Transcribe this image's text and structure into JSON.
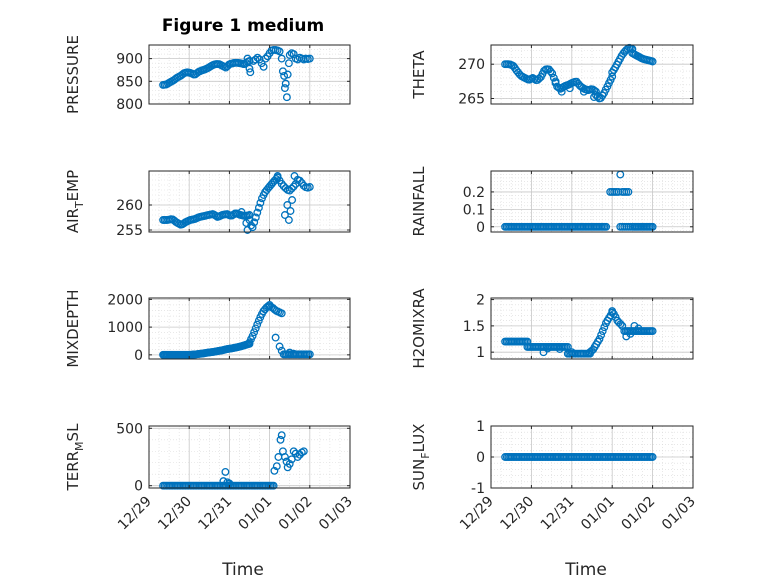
{
  "figure_title": "Figure 1 medium",
  "x_label": "Time",
  "x_tick_labels": [
    "12/29",
    "12/30",
    "12/31",
    "01/01",
    "01/02",
    "01/03"
  ],
  "marker_color": "#0072BD",
  "chart_data": [
    {
      "type": "scatter",
      "ylabel": "PRESSURE",
      "title": "Figure 1 medium",
      "xlim": [
        0,
        5
      ],
      "ylim": [
        800,
        930
      ],
      "yticks": [
        800,
        850,
        900
      ],
      "ytick_labels": [
        "800",
        "850",
        "900"
      ],
      "grid": true,
      "segments": [
        {
          "x0": 0.35,
          "x1": 2.35,
          "y": [
            842,
            843,
            848,
            852,
            858,
            862,
            868,
            870,
            868,
            864,
            870,
            874,
            876,
            880,
            885,
            888,
            888,
            884,
            880,
            888,
            890,
            891,
            890,
            888
          ],
          "step": 0.04
        },
        {
          "x0": 2.37,
          "x1": 2.5,
          "y": [
            888,
            892,
            895
          ],
          "step": 0.05
        }
      ],
      "points": [
        [
          2.45,
          900
        ],
        [
          2.5,
          878
        ],
        [
          2.52,
          870
        ],
        [
          2.6,
          895
        ],
        [
          2.65,
          898
        ],
        [
          2.7,
          902
        ],
        [
          2.75,
          898
        ],
        [
          2.8,
          890
        ],
        [
          2.85,
          882
        ],
        [
          2.9,
          900
        ],
        [
          2.95,
          905
        ],
        [
          3.0,
          912
        ],
        [
          3.05,
          918
        ],
        [
          3.1,
          919
        ],
        [
          3.15,
          919
        ],
        [
          3.2,
          918
        ],
        [
          3.25,
          916
        ],
        [
          3.3,
          900
        ],
        [
          3.33,
          872
        ],
        [
          3.36,
          862
        ],
        [
          3.38,
          835
        ],
        [
          3.4,
          845
        ],
        [
          3.43,
          815
        ],
        [
          3.45,
          865
        ],
        [
          3.48,
          890
        ],
        [
          3.5,
          908
        ],
        [
          3.55,
          912
        ],
        [
          3.6,
          910
        ],
        [
          3.65,
          900
        ],
        [
          3.7,
          898
        ],
        [
          3.75,
          902
        ],
        [
          3.8,
          900
        ],
        [
          3.85,
          898
        ],
        [
          3.9,
          900
        ],
        [
          3.95,
          899
        ],
        [
          4.0,
          900
        ]
      ]
    },
    {
      "type": "scatter",
      "ylabel": "THETA",
      "xlim": [
        0,
        5
      ],
      "ylim": [
        264.2,
        272.8
      ],
      "yticks": [
        265,
        270
      ],
      "ytick_labels": [
        "265",
        "270"
      ],
      "grid": true,
      "segments": [
        {
          "x0": 0.35,
          "x1": 2.6,
          "y": [
            270,
            270,
            269.8,
            269,
            268.3,
            268,
            267.7,
            268,
            267.6,
            268.1,
            269.2,
            269.3,
            268.6,
            266.8,
            266.4,
            266.8,
            267,
            267.3,
            267.5,
            266.8,
            266.4,
            266.2,
            266.4,
            266
          ],
          "step": 0.04
        },
        {
          "x0": 2.6,
          "x1": 3.0,
          "y": [
            265.5,
            264.9,
            265.8,
            267,
            268.2
          ],
          "step": 0.04
        },
        {
          "x0": 3.0,
          "x1": 3.5,
          "y": [
            268.8,
            269.6,
            270.5,
            271.4,
            272,
            272.4,
            272.2
          ],
          "step": 0.04
        },
        {
          "x0": 3.5,
          "x1": 4.0,
          "y": [
            271.6,
            271.2,
            270.8,
            270.6,
            270.4
          ],
          "step": 0.04
        }
      ],
      "points": [
        [
          1.6,
          267.5
        ],
        [
          1.75,
          266
        ],
        [
          1.95,
          266.5
        ],
        [
          2.3,
          266
        ],
        [
          2.55,
          265.2
        ]
      ]
    },
    {
      "type": "scatter",
      "ylabel": "AIR_TEMP",
      "ylabel_parts": {
        "base": "AIR",
        "sub": "T",
        "rest": "EMP"
      },
      "xlim": [
        0,
        5
      ],
      "ylim": [
        254.6,
        266.8
      ],
      "yticks": [
        255,
        260
      ],
      "ytick_labels": [
        "255",
        "260"
      ],
      "grid": true,
      "segments": [
        {
          "x0": 0.35,
          "x1": 2.5,
          "y": [
            257,
            257,
            257.2,
            256.5,
            256,
            256.6,
            257,
            257.2,
            257.6,
            257.8,
            258,
            258.2,
            257.6,
            258,
            258.2,
            257.8,
            258.4,
            258,
            257.8,
            258
          ],
          "step": 0.04
        },
        {
          "x0": 2.5,
          "x1": 3.2,
          "y": [
            257,
            255.2,
            256.8,
            258.4,
            260,
            261.5,
            262.5,
            263.2,
            263.8,
            264.4,
            265,
            265.5
          ],
          "step": 0.04
        },
        {
          "x0": 3.2,
          "x1": 4.0,
          "y": [
            265.8,
            264.5,
            263.8,
            263.2,
            262.8,
            263.4,
            264,
            265.2,
            264.6,
            263.8,
            263.4,
            263.6
          ],
          "step": 0.05
        }
      ],
      "points": [
        [
          2.3,
          258.6
        ],
        [
          2.42,
          256.4
        ],
        [
          2.45,
          255
        ],
        [
          3.38,
          258
        ],
        [
          3.44,
          260
        ],
        [
          3.48,
          257
        ],
        [
          3.52,
          258.8
        ],
        [
          3.56,
          261
        ],
        [
          3.62,
          265.8
        ]
      ]
    },
    {
      "type": "scatter",
      "ylabel": "RAINFALL",
      "xlim": [
        0,
        5
      ],
      "ylim": [
        -0.03,
        0.32
      ],
      "yticks": [
        0,
        0.1,
        0.2
      ],
      "ytick_labels": [
        "0",
        "0.1",
        "0.2"
      ],
      "grid": true,
      "segments": [
        {
          "x0": 0.35,
          "x1": 2.85,
          "y": [
            0
          ],
          "step": 0.04
        },
        {
          "x0": 3.5,
          "x1": 4.0,
          "y": [
            0
          ],
          "step": 0.04
        }
      ],
      "points": [
        [
          2.95,
          0.2
        ],
        [
          3.0,
          0.2
        ],
        [
          3.05,
          0.2
        ],
        [
          3.1,
          0.2
        ],
        [
          3.15,
          0.2
        ],
        [
          3.2,
          0.3
        ],
        [
          3.25,
          0.2
        ],
        [
          3.3,
          0.2
        ],
        [
          3.35,
          0.2
        ],
        [
          3.4,
          0.2
        ],
        [
          3.2,
          0
        ],
        [
          3.25,
          0
        ],
        [
          3.3,
          0
        ],
        [
          3.35,
          0
        ],
        [
          3.4,
          0
        ],
        [
          3.45,
          0
        ]
      ]
    },
    {
      "type": "scatter",
      "ylabel": "MIXDEPTH",
      "xlim": [
        0,
        5
      ],
      "ylim": [
        -150,
        2050
      ],
      "yticks": [
        0,
        1000,
        2000
      ],
      "ytick_labels": [
        "0",
        "1000",
        "2000"
      ],
      "grid": true,
      "segments": [
        {
          "x0": 0.35,
          "x1": 1.0,
          "y": [
            0
          ],
          "step": 0.03
        },
        {
          "x0": 1.0,
          "x1": 2.5,
          "y": [
            0,
            10,
            30,
            50,
            80,
            100,
            130,
            160,
            200,
            230,
            260,
            300,
            350,
            400
          ],
          "step": 0.03
        },
        {
          "x0": 2.5,
          "x1": 3.0,
          "y": [
            450,
            700,
            1000,
            1300,
            1550,
            1700,
            1800
          ],
          "step": 0.04
        },
        {
          "x0": 3.0,
          "x1": 3.3,
          "y": [
            1750,
            1700,
            1600,
            1550,
            1500
          ],
          "step": 0.04
        },
        {
          "x0": 3.35,
          "x1": 4.0,
          "y": [
            20
          ],
          "step": 0.04
        }
      ],
      "points": [
        [
          3.15,
          620
        ],
        [
          3.25,
          300
        ],
        [
          3.3,
          150
        ],
        [
          3.5,
          80
        ],
        [
          3.6,
          40
        ]
      ]
    },
    {
      "type": "scatter",
      "ylabel": "H2OMIXRA",
      "xlim": [
        0,
        5
      ],
      "ylim": [
        0.87,
        2.03
      ],
      "yticks": [
        1,
        1.5,
        2
      ],
      "ytick_labels": [
        "1",
        "1.5",
        "2"
      ],
      "grid": true,
      "segments": [
        {
          "x0": 0.35,
          "x1": 0.9,
          "y": [
            1.2
          ],
          "step": 0.04
        },
        {
          "x0": 0.9,
          "x1": 1.9,
          "y": [
            1.1
          ],
          "step": 0.04
        },
        {
          "x0": 1.9,
          "x1": 2.45,
          "y": [
            0.97
          ],
          "step": 0.04
        },
        {
          "x0": 2.45,
          "x1": 3.0,
          "y": [
            1.0,
            1.05,
            1.15,
            1.25,
            1.4,
            1.55,
            1.65,
            1.75
          ],
          "step": 0.04
        },
        {
          "x0": 3.0,
          "x1": 3.25,
          "y": [
            1.78,
            1.7,
            1.6,
            1.55,
            1.5
          ],
          "step": 0.04
        },
        {
          "x0": 3.3,
          "x1": 4.0,
          "y": [
            1.4
          ],
          "step": 0.04
        }
      ],
      "points": [
        [
          1.3,
          1.0
        ],
        [
          1.4,
          1.07
        ],
        [
          1.7,
          1.06
        ],
        [
          2.0,
          1.0
        ],
        [
          3.35,
          1.3
        ],
        [
          3.45,
          1.35
        ],
        [
          3.55,
          1.5
        ],
        [
          3.65,
          1.45
        ]
      ]
    },
    {
      "type": "scatter",
      "ylabel": "TERR_MSL",
      "ylabel_parts": {
        "base": "TERR",
        "sub": "M",
        "rest": "SL"
      },
      "xlim": [
        0,
        5
      ],
      "ylim": [
        -20,
        520
      ],
      "yticks": [
        0,
        500
      ],
      "ytick_labels": [
        "0",
        "500"
      ],
      "grid": true,
      "segments": [
        {
          "x0": 0.35,
          "x1": 3.1,
          "y": [
            0
          ],
          "step": 0.04
        }
      ],
      "points": [
        [
          1.85,
          40
        ],
        [
          1.9,
          120
        ],
        [
          1.95,
          30
        ],
        [
          1.98,
          15
        ],
        [
          2.0,
          20
        ],
        [
          3.12,
          130
        ],
        [
          3.18,
          170
        ],
        [
          3.22,
          250
        ],
        [
          3.27,
          400
        ],
        [
          3.3,
          440
        ],
        [
          3.33,
          300
        ],
        [
          3.38,
          250
        ],
        [
          3.42,
          210
        ],
        [
          3.45,
          160
        ],
        [
          3.5,
          190
        ],
        [
          3.55,
          230
        ],
        [
          3.6,
          300
        ],
        [
          3.65,
          280
        ],
        [
          3.7,
          250
        ],
        [
          3.75,
          270
        ],
        [
          3.8,
          290
        ],
        [
          3.85,
          300
        ]
      ]
    },
    {
      "type": "scatter",
      "ylabel": "SUN_FLUX",
      "ylabel_parts": {
        "base": "SUN",
        "sub": "F",
        "rest": "LUX"
      },
      "xlim": [
        0,
        5
      ],
      "ylim": [
        -1,
        1
      ],
      "yticks": [
        -1,
        0,
        1
      ],
      "ytick_labels": [
        "-1",
        "0",
        "1"
      ],
      "grid": true,
      "segments": [
        {
          "x0": 0.35,
          "x1": 4.0,
          "y": [
            0
          ],
          "step": 0.04
        }
      ],
      "points": []
    }
  ]
}
